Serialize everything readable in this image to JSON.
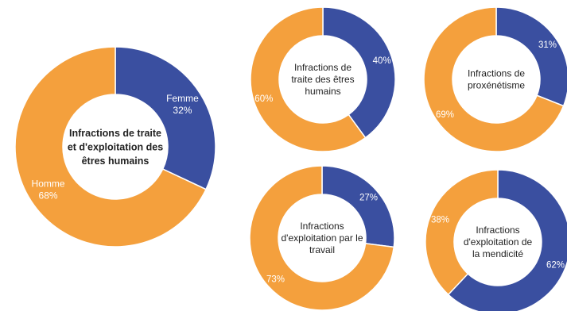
{
  "colors": {
    "femme": "#3A4FA0",
    "homme": "#F4A03D",
    "label": "#ffffff",
    "text": "#222222"
  },
  "chart_data": [
    {
      "type": "pie",
      "title_lines": [
        "Infractions de traite",
        "et d'exploitation des",
        "êtres humains"
      ],
      "series": [
        {
          "name": "Femme",
          "value": 32,
          "label": "32%"
        },
        {
          "name": "Homme",
          "value": 68,
          "label": "68%"
        }
      ]
    },
    {
      "type": "pie",
      "title_lines": [
        "Infractions de",
        "traite  des êtres",
        "humains"
      ],
      "series": [
        {
          "value": 40,
          "label": "40%"
        },
        {
          "value": 60,
          "label": "60%"
        }
      ]
    },
    {
      "type": "pie",
      "title_lines": [
        "Infractions de",
        "proxénétisme"
      ],
      "series": [
        {
          "value": 31,
          "label": "31%"
        },
        {
          "value": 69,
          "label": "69%"
        }
      ]
    },
    {
      "type": "pie",
      "title_lines": [
        "Infractions",
        "d'exploitation par le",
        "travail"
      ],
      "series": [
        {
          "value": 27,
          "label": "27%"
        },
        {
          "value": 73,
          "label": "73%"
        }
      ]
    },
    {
      "type": "pie",
      "title_lines": [
        "Infractions",
        "d'exploitation de",
        "la mendicité"
      ],
      "series": [
        {
          "value": 62,
          "label": "62%"
        },
        {
          "value": 38,
          "label": "38%"
        }
      ]
    }
  ]
}
